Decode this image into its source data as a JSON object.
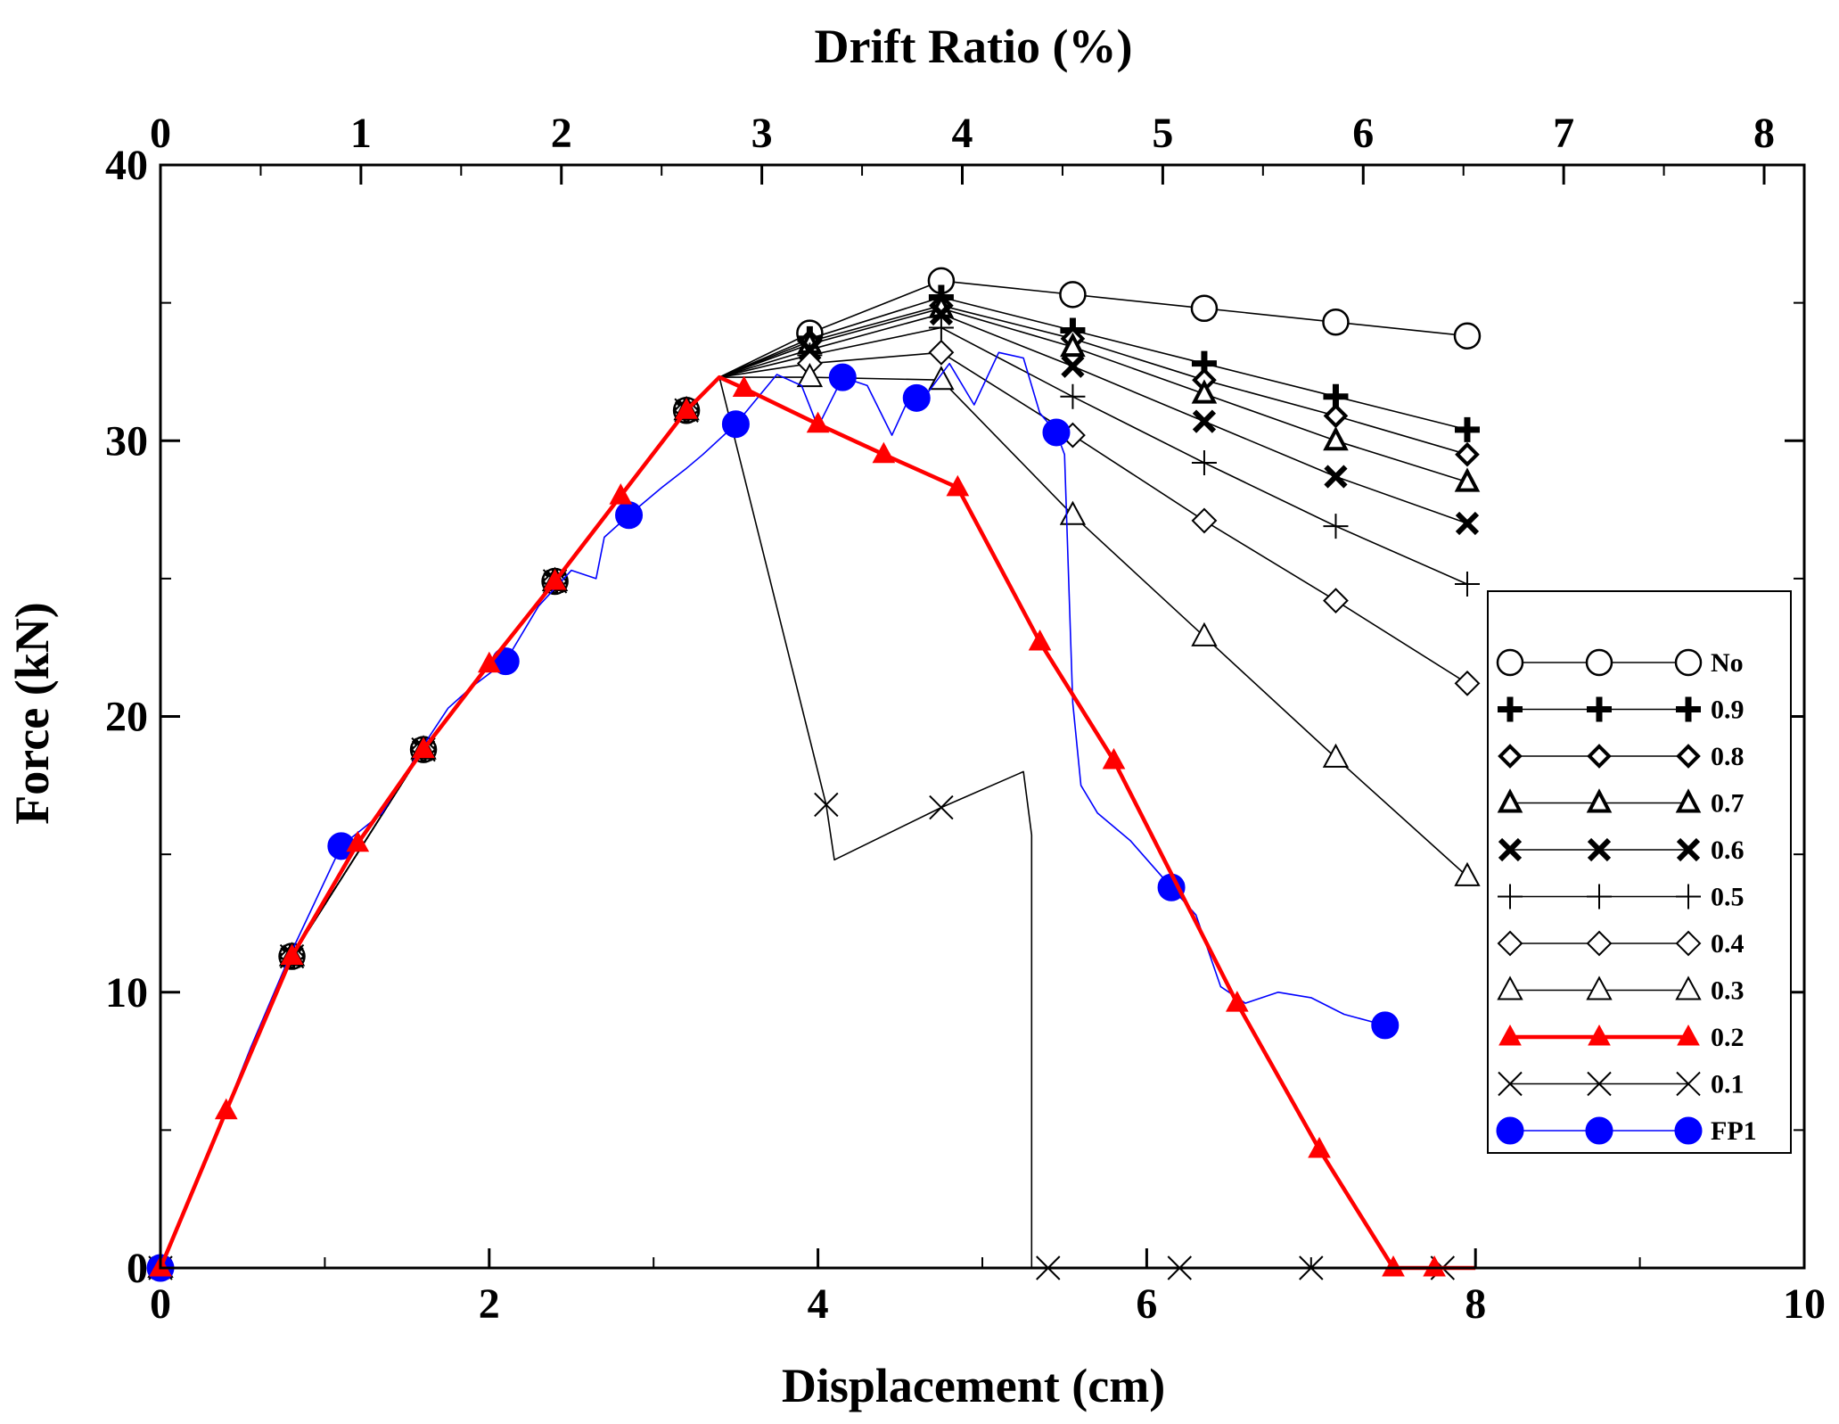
{
  "chart_data": {
    "type": "line",
    "xlabel": "Displacement (cm)",
    "ylabel": "Force (kN)",
    "x2label": "Drift Ratio (%)",
    "xlim": [
      0,
      10
    ],
    "ylim": [
      0,
      40
    ],
    "x2lim": [
      0,
      8.2
    ],
    "xticks": [
      "0",
      "2",
      "4",
      "6",
      "8",
      "10"
    ],
    "yticks": [
      "0",
      "10",
      "20",
      "30",
      "40"
    ],
    "x2ticks": [
      "0",
      "1",
      "2",
      "3",
      "4",
      "5",
      "6",
      "7",
      "8"
    ],
    "legend_position": "right",
    "series": [
      {
        "name": "No",
        "marker": "circle-open",
        "color": "#000000",
        "x": [
          0,
          0.8,
          1.6,
          2.4,
          3.2,
          3.4,
          3.95,
          4.75,
          5.55,
          6.35,
          7.15,
          7.95
        ],
        "y": [
          0,
          11.3,
          18.8,
          24.9,
          31.1,
          32.3,
          33.9,
          35.8,
          35.3,
          34.8,
          34.3,
          33.8
        ]
      },
      {
        "name": "0.9",
        "marker": "plus-bold",
        "color": "#000000",
        "x": [
          0,
          0.8,
          1.6,
          2.4,
          3.2,
          3.4,
          3.95,
          4.75,
          5.55,
          6.35,
          7.15,
          7.95
        ],
        "y": [
          0,
          11.3,
          18.8,
          24.9,
          31.1,
          32.3,
          33.7,
          35.2,
          34.0,
          32.8,
          31.6,
          30.4
        ]
      },
      {
        "name": "0.8",
        "marker": "diamond-open-bold",
        "color": "#000000",
        "x": [
          0,
          0.8,
          1.6,
          2.4,
          3.2,
          3.4,
          3.95,
          4.75,
          5.55,
          6.35,
          7.15,
          7.95
        ],
        "y": [
          0,
          11.3,
          18.8,
          24.9,
          31.1,
          32.3,
          33.6,
          34.9,
          33.7,
          32.2,
          30.9,
          29.5
        ]
      },
      {
        "name": "0.7",
        "marker": "triangle-open-bold",
        "color": "#000000",
        "x": [
          0,
          0.8,
          1.6,
          2.4,
          3.2,
          3.4,
          3.95,
          4.75,
          5.55,
          6.35,
          7.15,
          7.95
        ],
        "y": [
          0,
          11.3,
          18.8,
          24.9,
          31.1,
          32.3,
          33.5,
          34.8,
          33.4,
          31.7,
          30.0,
          28.5
        ]
      },
      {
        "name": "0.6",
        "marker": "x-bold",
        "color": "#000000",
        "x": [
          0,
          0.8,
          1.6,
          2.4,
          3.2,
          3.4,
          3.95,
          4.75,
          5.55,
          6.35,
          7.15,
          7.95
        ],
        "y": [
          0,
          11.3,
          18.8,
          24.9,
          31.1,
          32.3,
          33.3,
          34.6,
          32.7,
          30.7,
          28.7,
          27.0
        ]
      },
      {
        "name": "0.5",
        "marker": "plus-thin",
        "color": "#000000",
        "x": [
          0,
          0.8,
          1.6,
          2.4,
          3.2,
          3.4,
          3.95,
          4.75,
          5.55,
          6.35,
          7.15,
          7.95
        ],
        "y": [
          0,
          11.3,
          18.8,
          24.9,
          31.1,
          32.3,
          33.1,
          34.1,
          31.6,
          29.2,
          26.9,
          24.8
        ]
      },
      {
        "name": "0.4",
        "marker": "diamond-open",
        "color": "#000000",
        "x": [
          0,
          0.8,
          1.6,
          2.4,
          3.2,
          3.4,
          3.95,
          4.75,
          5.55,
          6.35,
          7.15,
          7.95
        ],
        "y": [
          0,
          11.3,
          18.8,
          24.9,
          31.1,
          32.3,
          32.8,
          33.2,
          30.2,
          27.1,
          24.2,
          21.2
        ]
      },
      {
        "name": "0.3",
        "marker": "triangle-open",
        "color": "#000000",
        "x": [
          0,
          0.8,
          1.6,
          2.4,
          3.2,
          3.4,
          3.95,
          4.75,
          5.55,
          6.35,
          7.15,
          7.95
        ],
        "y": [
          0,
          11.3,
          18.8,
          24.9,
          31.1,
          32.3,
          32.3,
          32.2,
          27.3,
          22.9,
          18.5,
          14.2
        ]
      },
      {
        "name": "0.2",
        "marker": "triangle-filled",
        "color": "#ff0000",
        "x": [
          0,
          0.4,
          0.8,
          1.2,
          1.6,
          2.0,
          2.4,
          2.8,
          3.2,
          3.4,
          3.55,
          4.0,
          4.4,
          4.85,
          5.35,
          5.8,
          6.55,
          7.05,
          7.5,
          7.75,
          8.0
        ],
        "y": [
          0,
          5.7,
          11.3,
          15.4,
          18.8,
          21.9,
          24.9,
          28.0,
          31.1,
          32.3,
          31.9,
          30.6,
          29.5,
          28.3,
          22.7,
          18.4,
          9.6,
          4.3,
          0,
          0,
          0
        ]
      },
      {
        "name": "0.1",
        "marker": "x-thin",
        "color": "#000000",
        "x": [
          0,
          0.8,
          1.6,
          2.4,
          3.2,
          3.4,
          4.05,
          4.1,
          4.75,
          5.25,
          5.3,
          5.3,
          5.4,
          6.2,
          7.0,
          7.8
        ],
        "y": [
          0,
          11.3,
          18.8,
          24.9,
          31.1,
          32.3,
          16.8,
          14.8,
          16.7,
          18.0,
          15.7,
          0,
          0,
          0,
          0,
          0
        ]
      },
      {
        "name": "FP1",
        "marker": "circle-filled",
        "color": "#0000ff",
        "x": [
          0,
          0.25,
          0.55,
          0.8,
          1.1,
          1.35,
          1.55,
          1.75,
          1.9,
          2.1,
          2.3,
          2.5,
          2.65,
          2.7,
          2.85,
          3.05,
          3.2,
          3.3,
          3.5,
          3.75,
          3.9,
          4.0,
          4.15,
          4.3,
          4.45,
          4.55,
          4.65,
          4.8,
          4.95,
          5.1,
          5.25,
          5.35,
          5.45,
          5.5,
          5.55,
          5.6,
          5.7,
          5.9,
          6.15,
          6.3,
          6.45,
          6.6,
          6.8,
          7.0,
          7.2,
          7.45
        ],
        "y": [
          0,
          3.5,
          8.0,
          11.5,
          15.3,
          16.5,
          18.5,
          20.3,
          21.1,
          22.0,
          24.0,
          25.3,
          25.0,
          26.5,
          27.3,
          28.3,
          29.0,
          29.5,
          30.6,
          32.4,
          32.0,
          30.5,
          32.3,
          32.0,
          30.2,
          31.5,
          31.6,
          32.8,
          31.3,
          33.2,
          33.0,
          31.0,
          30.3,
          29.5,
          20.5,
          17.5,
          16.5,
          15.5,
          13.8,
          12.8,
          10.2,
          9.6,
          10.0,
          9.8,
          9.2,
          8.8
        ]
      }
    ],
    "marker_x": {
      "No": [
        0,
        0.8,
        1.6,
        2.4,
        3.2,
        3.95,
        4.75,
        5.55,
        6.35,
        7.15,
        7.95
      ],
      "0.9": [
        0,
        0.8,
        1.6,
        2.4,
        3.2,
        3.95,
        4.75,
        5.55,
        6.35,
        7.15,
        7.95
      ],
      "0.8": [
        0,
        0.8,
        1.6,
        2.4,
        3.2,
        3.95,
        4.75,
        5.55,
        6.35,
        7.15,
        7.95
      ],
      "0.7": [
        0,
        0.8,
        1.6,
        2.4,
        3.2,
        3.95,
        4.75,
        5.55,
        6.35,
        7.15,
        7.95
      ],
      "0.6": [
        0,
        0.8,
        1.6,
        2.4,
        3.2,
        3.95,
        4.75,
        5.55,
        6.35,
        7.15,
        7.95
      ],
      "0.5": [
        0,
        0.8,
        1.6,
        2.4,
        3.2,
        3.95,
        4.75,
        5.55,
        6.35,
        7.15,
        7.95
      ],
      "0.4": [
        0,
        0.8,
        1.6,
        2.4,
        3.2,
        3.95,
        4.75,
        5.55,
        6.35,
        7.15,
        7.95
      ],
      "0.3": [
        0,
        0.8,
        1.6,
        2.4,
        3.2,
        3.95,
        4.75,
        5.55,
        6.35,
        7.15,
        7.95
      ],
      "0.2": [
        0,
        0.4,
        0.8,
        1.2,
        1.6,
        2.0,
        2.4,
        2.8,
        3.2,
        3.55,
        4.0,
        4.4,
        4.85,
        5.35,
        5.8,
        6.55,
        7.05,
        7.5,
        7.75
      ],
      "0.1": [
        0,
        0.8,
        1.6,
        2.4,
        3.2,
        4.05,
        4.75,
        5.4,
        6.2,
        7.0,
        7.8
      ],
      "FP1": [
        0,
        1.1,
        2.1,
        2.85,
        3.5,
        4.15,
        4.6,
        5.45,
        6.15,
        7.45
      ]
    }
  }
}
